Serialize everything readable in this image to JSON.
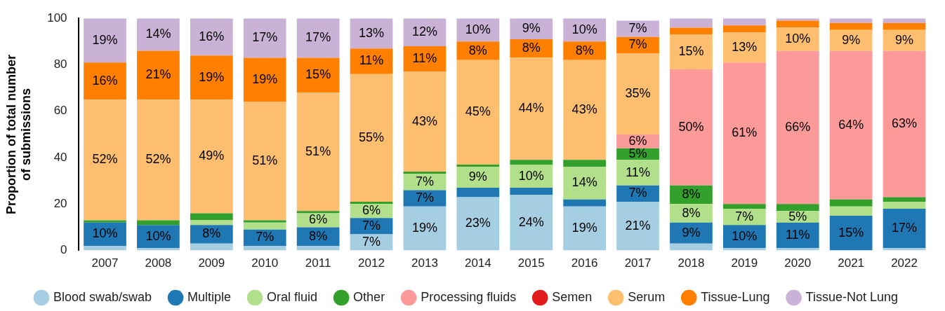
{
  "chart_data": {
    "type": "bar",
    "stacked": true,
    "ylabel": "Proportion of total number\nof submissions",
    "categories": [
      "2007",
      "2008",
      "2009",
      "2010",
      "2011",
      "2012",
      "2013",
      "2014",
      "2015",
      "2016",
      "2017",
      "2018",
      "2019",
      "2020",
      "2021",
      "2022"
    ],
    "series": [
      {
        "name": "Blood swab/swab",
        "color": "#a6cee3",
        "values": [
          2,
          1,
          3,
          2,
          2,
          7,
          19,
          23,
          24,
          19,
          21,
          3,
          1,
          1,
          0,
          1
        ],
        "value_labels": [
          null,
          null,
          null,
          null,
          null,
          "7%",
          "19%",
          "23%",
          "24%",
          "19%",
          "21%",
          null,
          null,
          null,
          null,
          null
        ]
      },
      {
        "name": "Multiple",
        "color": "#1f78b4",
        "values": [
          10,
          10,
          8,
          7,
          8,
          7,
          7,
          4,
          3,
          3,
          7,
          9,
          10,
          11,
          15,
          17
        ],
        "value_labels": [
          "10%",
          "10%",
          "8%",
          "7%",
          "8%",
          "7%",
          "7%",
          null,
          null,
          null,
          "7%",
          "9%",
          "10%",
          "11%",
          "15%",
          "17%"
        ]
      },
      {
        "name": "Oral fluid",
        "color": "#b2df8a",
        "values": [
          0,
          0,
          2,
          3,
          6,
          6,
          7,
          9,
          10,
          14,
          11,
          8,
          7,
          5,
          4,
          3
        ],
        "value_labels": [
          null,
          null,
          null,
          null,
          "6%",
          "6%",
          "7%",
          "9%",
          "10%",
          "14%",
          "11%",
          "8%",
          "7%",
          "5%",
          null,
          null
        ]
      },
      {
        "name": "Other",
        "color": "#33a02c",
        "values": [
          1,
          2,
          3,
          1,
          1,
          1,
          1,
          1,
          2,
          3,
          5,
          8,
          2,
          3,
          3,
          2
        ],
        "value_labels": [
          null,
          null,
          null,
          null,
          null,
          null,
          null,
          null,
          null,
          null,
          "5%",
          "8%",
          null,
          null,
          null,
          null
        ]
      },
      {
        "name": "Processing fluids",
        "color": "#fb9a99",
        "values": [
          0,
          0,
          0,
          0,
          0,
          0,
          0,
          0,
          0,
          0,
          6,
          50,
          61,
          66,
          64,
          63
        ],
        "value_labels": [
          null,
          null,
          null,
          null,
          null,
          null,
          null,
          null,
          null,
          null,
          "6%",
          "50%",
          "61%",
          "66%",
          "64%",
          "63%"
        ]
      },
      {
        "name": "Semen",
        "color": "#e31a1c",
        "values": [
          0,
          0,
          0,
          0,
          0,
          0,
          0,
          0,
          0,
          0,
          0,
          0,
          0,
          0,
          0,
          0
        ]
      },
      {
        "name": "Serum",
        "color": "#fdbf6f",
        "values": [
          52,
          52,
          49,
          51,
          51,
          55,
          43,
          45,
          44,
          43,
          35,
          15,
          13,
          10,
          9,
          9
        ],
        "value_labels": [
          "52%",
          "52%",
          "49%",
          "51%",
          "51%",
          "55%",
          "43%",
          "45%",
          "44%",
          "43%",
          "35%",
          "15%",
          "13%",
          "10%",
          "9%",
          "9%"
        ]
      },
      {
        "name": "Tissue-Lung",
        "color": "#ff7f00",
        "values": [
          16,
          21,
          19,
          19,
          15,
          11,
          11,
          8,
          8,
          8,
          7,
          3,
          3,
          3,
          3,
          3
        ],
        "value_labels": [
          "16%",
          "21%",
          "19%",
          "19%",
          "15%",
          "11%",
          "11%",
          "8%",
          "8%",
          "8%",
          "7%",
          null,
          null,
          null,
          null,
          null
        ]
      },
      {
        "name": "Tissue-Not Lung",
        "color": "#cab2d6",
        "values": [
          19,
          14,
          16,
          17,
          17,
          13,
          12,
          10,
          9,
          10,
          7,
          4,
          3,
          1,
          2,
          2
        ],
        "value_labels": [
          "19%",
          "14%",
          "16%",
          "17%",
          "17%",
          "13%",
          "12%",
          "10%",
          "9%",
          "10%",
          "7%",
          null,
          null,
          null,
          null,
          null
        ]
      }
    ],
    "ylim": [
      0,
      100
    ],
    "yticks": [
      0,
      20,
      40,
      60,
      80,
      100
    ],
    "grid": false,
    "legend": "bottom",
    "marker": "circle"
  }
}
